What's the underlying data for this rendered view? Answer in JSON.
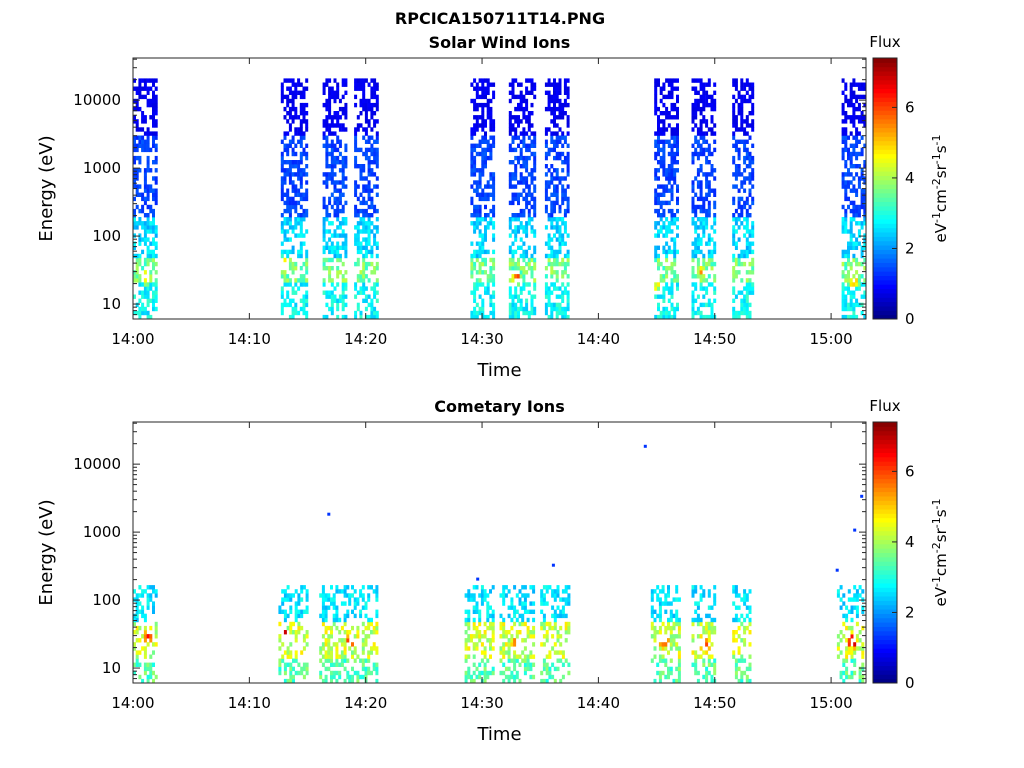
{
  "figure_title": "RPCICA150711T14.PNG",
  "chart_data": [
    {
      "type": "heatmap",
      "title": "Solar Wind Ions",
      "xlabel": "Time",
      "ylabel": "Energy (eV)",
      "x_unit": "minutes",
      "xlim": [
        0,
        63
      ],
      "ylim_log10": [
        0.78,
        4.62
      ],
      "y_scale": "log",
      "x_ticks": [
        {
          "value": 0,
          "label": "14:00"
        },
        {
          "value": 10,
          "label": "14:10"
        },
        {
          "value": 20,
          "label": "14:20"
        },
        {
          "value": 30,
          "label": "14:30"
        },
        {
          "value": 40,
          "label": "14:40"
        },
        {
          "value": 50,
          "label": "14:50"
        },
        {
          "value": 60,
          "label": "15:00"
        }
      ],
      "y_ticks": [
        {
          "value": 10,
          "label": "10"
        },
        {
          "value": 100,
          "label": "100"
        },
        {
          "value": 1000,
          "label": "1000"
        },
        {
          "value": 10000,
          "label": "10000"
        }
      ],
      "colorbar": {
        "title": "Flux",
        "label": "eV-1cm-2sr-1s-1",
        "range": [
          0,
          7.4
        ],
        "ticks": [
          "0",
          "2",
          "4",
          "6"
        ],
        "colormap": "jet"
      },
      "bursts": [
        {
          "start": 0.0,
          "end": 2.1
        },
        {
          "start": 12.7,
          "end": 15.0
        },
        {
          "start": 16.3,
          "end": 18.2
        },
        {
          "start": 19.0,
          "end": 21.0
        },
        {
          "start": 29.0,
          "end": 31.0
        },
        {
          "start": 32.3,
          "end": 34.5
        },
        {
          "start": 35.4,
          "end": 37.3
        },
        {
          "start": 44.8,
          "end": 46.8
        },
        {
          "start": 48.0,
          "end": 50.0
        },
        {
          "start": 51.5,
          "end": 53.3
        },
        {
          "start": 60.9,
          "end": 63.0
        }
      ],
      "energy_bands": [
        {
          "e_min": 6,
          "e_max": 20,
          "flux": 2.8
        },
        {
          "e_min": 20,
          "e_max": 45,
          "flux": 3.6
        },
        {
          "e_min": 45,
          "e_max": 200,
          "flux": 2.5
        },
        {
          "e_min": 200,
          "e_max": 3000,
          "flux": 1.4
        },
        {
          "e_min": 3000,
          "e_max": 22000,
          "flux": 0.8
        }
      ],
      "peaks": [
        {
          "time": 1.0,
          "energy": 25,
          "flux": 5.0
        },
        {
          "time": 12.9,
          "energy": 40,
          "flux": 4.6
        },
        {
          "time": 32.8,
          "energy": 25,
          "flux": 5.6
        },
        {
          "time": 45.0,
          "energy": 20,
          "flux": 5.0
        },
        {
          "time": 48.7,
          "energy": 30,
          "flux": 4.8
        },
        {
          "time": 61.8,
          "energy": 22,
          "flux": 5.2
        }
      ]
    },
    {
      "type": "heatmap",
      "title": "Cometary Ions",
      "xlabel": "Time",
      "ylabel": "Energy (eV)",
      "x_unit": "minutes",
      "xlim": [
        0,
        63
      ],
      "ylim_log10": [
        0.78,
        4.62
      ],
      "y_scale": "log",
      "x_ticks": [
        {
          "value": 0,
          "label": "14:00"
        },
        {
          "value": 10,
          "label": "14:10"
        },
        {
          "value": 20,
          "label": "14:20"
        },
        {
          "value": 30,
          "label": "14:30"
        },
        {
          "value": 40,
          "label": "14:40"
        },
        {
          "value": 50,
          "label": "14:50"
        },
        {
          "value": 60,
          "label": "15:00"
        }
      ],
      "y_ticks": [
        {
          "value": 10,
          "label": "10"
        },
        {
          "value": 100,
          "label": "100"
        },
        {
          "value": 1000,
          "label": "1000"
        },
        {
          "value": 10000,
          "label": "10000"
        }
      ],
      "colorbar": {
        "title": "Flux",
        "label": "eV-1cm-2sr-1s-1",
        "range": [
          0,
          7.4
        ],
        "ticks": [
          "0",
          "2",
          "4",
          "6"
        ],
        "colormap": "jet"
      },
      "bursts": [
        {
          "start": 0.0,
          "end": 2.1
        },
        {
          "start": 12.5,
          "end": 15.0
        },
        {
          "start": 16.0,
          "end": 18.5
        },
        {
          "start": 18.5,
          "end": 21.0
        },
        {
          "start": 28.5,
          "end": 31.0
        },
        {
          "start": 31.5,
          "end": 34.5
        },
        {
          "start": 35.0,
          "end": 37.5
        },
        {
          "start": 44.5,
          "end": 47.0
        },
        {
          "start": 48.0,
          "end": 50.0
        },
        {
          "start": 51.5,
          "end": 53.0
        },
        {
          "start": 60.5,
          "end": 63.0
        }
      ],
      "energy_bands": [
        {
          "e_min": 6,
          "e_max": 14,
          "flux": 3.4
        },
        {
          "e_min": 14,
          "e_max": 45,
          "flux": 4.2
        },
        {
          "e_min": 45,
          "e_max": 160,
          "flux": 2.6
        }
      ],
      "peaks": [
        {
          "time": 1.2,
          "energy": 30,
          "flux": 6.5
        },
        {
          "time": 13.0,
          "energy": 30,
          "flux": 6.5
        },
        {
          "time": 18.5,
          "energy": 25,
          "flux": 6.0
        },
        {
          "time": 32.9,
          "energy": 22,
          "flux": 7.0
        },
        {
          "time": 45.5,
          "energy": 25,
          "flux": 6.5
        },
        {
          "time": 49.0,
          "energy": 22,
          "flux": 7.0
        },
        {
          "time": 61.7,
          "energy": 25,
          "flux": 7.0
        }
      ],
      "isolated_points": [
        {
          "time": 16.7,
          "energy": 1800
        },
        {
          "time": 29.5,
          "energy": 200
        },
        {
          "time": 36.0,
          "energy": 320
        },
        {
          "time": 43.9,
          "energy": 18000
        },
        {
          "time": 62.5,
          "energy": 3300
        },
        {
          "time": 61.9,
          "energy": 1050
        },
        {
          "time": 60.4,
          "energy": 270
        }
      ]
    }
  ]
}
